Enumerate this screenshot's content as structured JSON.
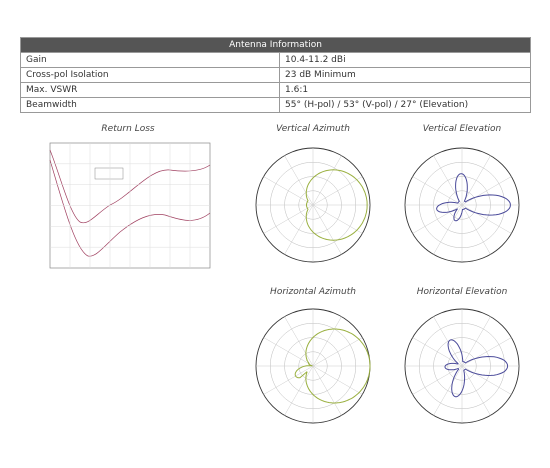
{
  "table": {
    "title": "Antenna Information",
    "rows": [
      [
        "Gain",
        "10.4-11.2 dBi"
      ],
      [
        "Cross-pol Isolation",
        "23 dB Minimum"
      ],
      [
        "Max. VSWR",
        "1.6:1"
      ],
      [
        "Beamwidth",
        "55° (H-pol) / 53° (V-pol) / 27° (Elevation)"
      ]
    ]
  },
  "charts": [
    {
      "title": "Return Loss"
    },
    {
      "title": "Vertical Azimuth"
    },
    {
      "title": "Vertical Elevation"
    },
    {
      "title": "Horizontal Azimuth"
    },
    {
      "title": "Horizontal Elevation"
    }
  ]
}
